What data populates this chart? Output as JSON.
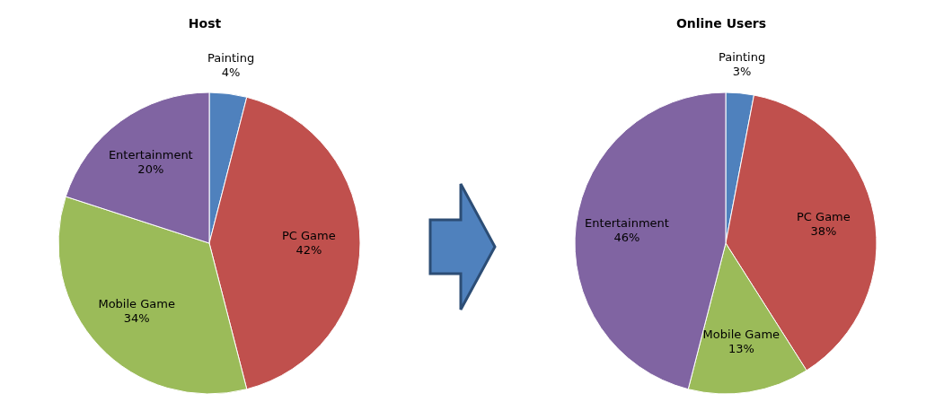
{
  "chart_data": [
    {
      "type": "pie",
      "title": "Host",
      "categories": [
        "Painting",
        "PC Game",
        "Mobile Game",
        "Entertainment"
      ],
      "values": [
        4,
        42,
        34,
        20
      ],
      "value_labels": [
        "4%",
        "42%",
        "34%",
        "20%"
      ],
      "colors": [
        "#4f81bd",
        "#c0504d",
        "#9bbb59",
        "#8064a2"
      ]
    },
    {
      "type": "pie",
      "title": "Online Users",
      "categories": [
        "Painting",
        "PC Game",
        "Mobile Game",
        "Entertainment"
      ],
      "values": [
        3,
        38,
        13,
        46
      ],
      "value_labels": [
        "3%",
        "38%",
        "13%",
        "46%"
      ],
      "colors": [
        "#4f81bd",
        "#c0504d",
        "#9bbb59",
        "#8064a2"
      ]
    }
  ]
}
